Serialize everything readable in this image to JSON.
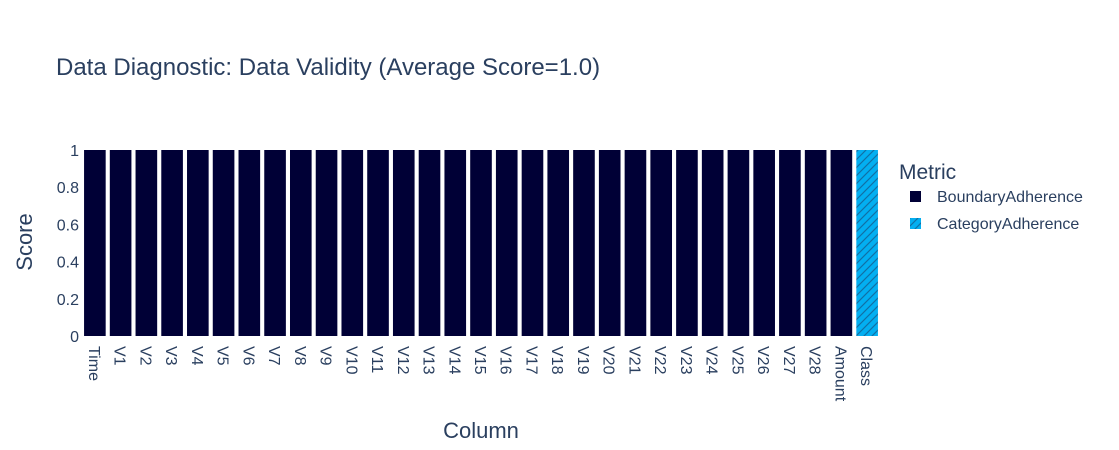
{
  "chart_data": {
    "type": "bar",
    "title": "Data Diagnostic: Data Validity (Average Score=1.0)",
    "xlabel": "Column",
    "ylabel": "Score",
    "ylim": [
      0,
      1
    ],
    "y_ticks": [
      0,
      0.2,
      0.4,
      0.6,
      0.8,
      1
    ],
    "y_tick_labels": [
      "0",
      "0.2",
      "0.4",
      "0.6",
      "0.8",
      "1"
    ],
    "legend_title": "Metric",
    "legend_position": "right",
    "grid": false,
    "categories": [
      "Time",
      "V1",
      "V2",
      "V3",
      "V4",
      "V5",
      "V6",
      "V7",
      "V8",
      "V9",
      "V10",
      "V11",
      "V12",
      "V13",
      "V14",
      "V15",
      "V16",
      "V17",
      "V18",
      "V19",
      "V20",
      "V21",
      "V22",
      "V23",
      "V24",
      "V25",
      "V26",
      "V27",
      "V28",
      "Amount",
      "Class"
    ],
    "series": [
      {
        "name": "BoundaryAdherence",
        "color": "#000036",
        "pattern": "solid",
        "points": [
          {
            "x": "Time",
            "y": 1
          },
          {
            "x": "V1",
            "y": 1
          },
          {
            "x": "V2",
            "y": 1
          },
          {
            "x": "V3",
            "y": 1
          },
          {
            "x": "V4",
            "y": 1
          },
          {
            "x": "V5",
            "y": 1
          },
          {
            "x": "V6",
            "y": 1
          },
          {
            "x": "V7",
            "y": 1
          },
          {
            "x": "V8",
            "y": 1
          },
          {
            "x": "V9",
            "y": 1
          },
          {
            "x": "V10",
            "y": 1
          },
          {
            "x": "V11",
            "y": 1
          },
          {
            "x": "V12",
            "y": 1
          },
          {
            "x": "V13",
            "y": 1
          },
          {
            "x": "V14",
            "y": 1
          },
          {
            "x": "V15",
            "y": 1
          },
          {
            "x": "V16",
            "y": 1
          },
          {
            "x": "V17",
            "y": 1
          },
          {
            "x": "V18",
            "y": 1
          },
          {
            "x": "V19",
            "y": 1
          },
          {
            "x": "V20",
            "y": 1
          },
          {
            "x": "V21",
            "y": 1
          },
          {
            "x": "V22",
            "y": 1
          },
          {
            "x": "V23",
            "y": 1
          },
          {
            "x": "V24",
            "y": 1
          },
          {
            "x": "V25",
            "y": 1
          },
          {
            "x": "V26",
            "y": 1
          },
          {
            "x": "V27",
            "y": 1
          },
          {
            "x": "V28",
            "y": 1
          },
          {
            "x": "Amount",
            "y": 1
          }
        ]
      },
      {
        "name": "CategoryAdherence",
        "color": "#03AFF1",
        "pattern": "diagonal-hatch",
        "points": [
          {
            "x": "Class",
            "y": 1
          }
        ]
      }
    ]
  }
}
